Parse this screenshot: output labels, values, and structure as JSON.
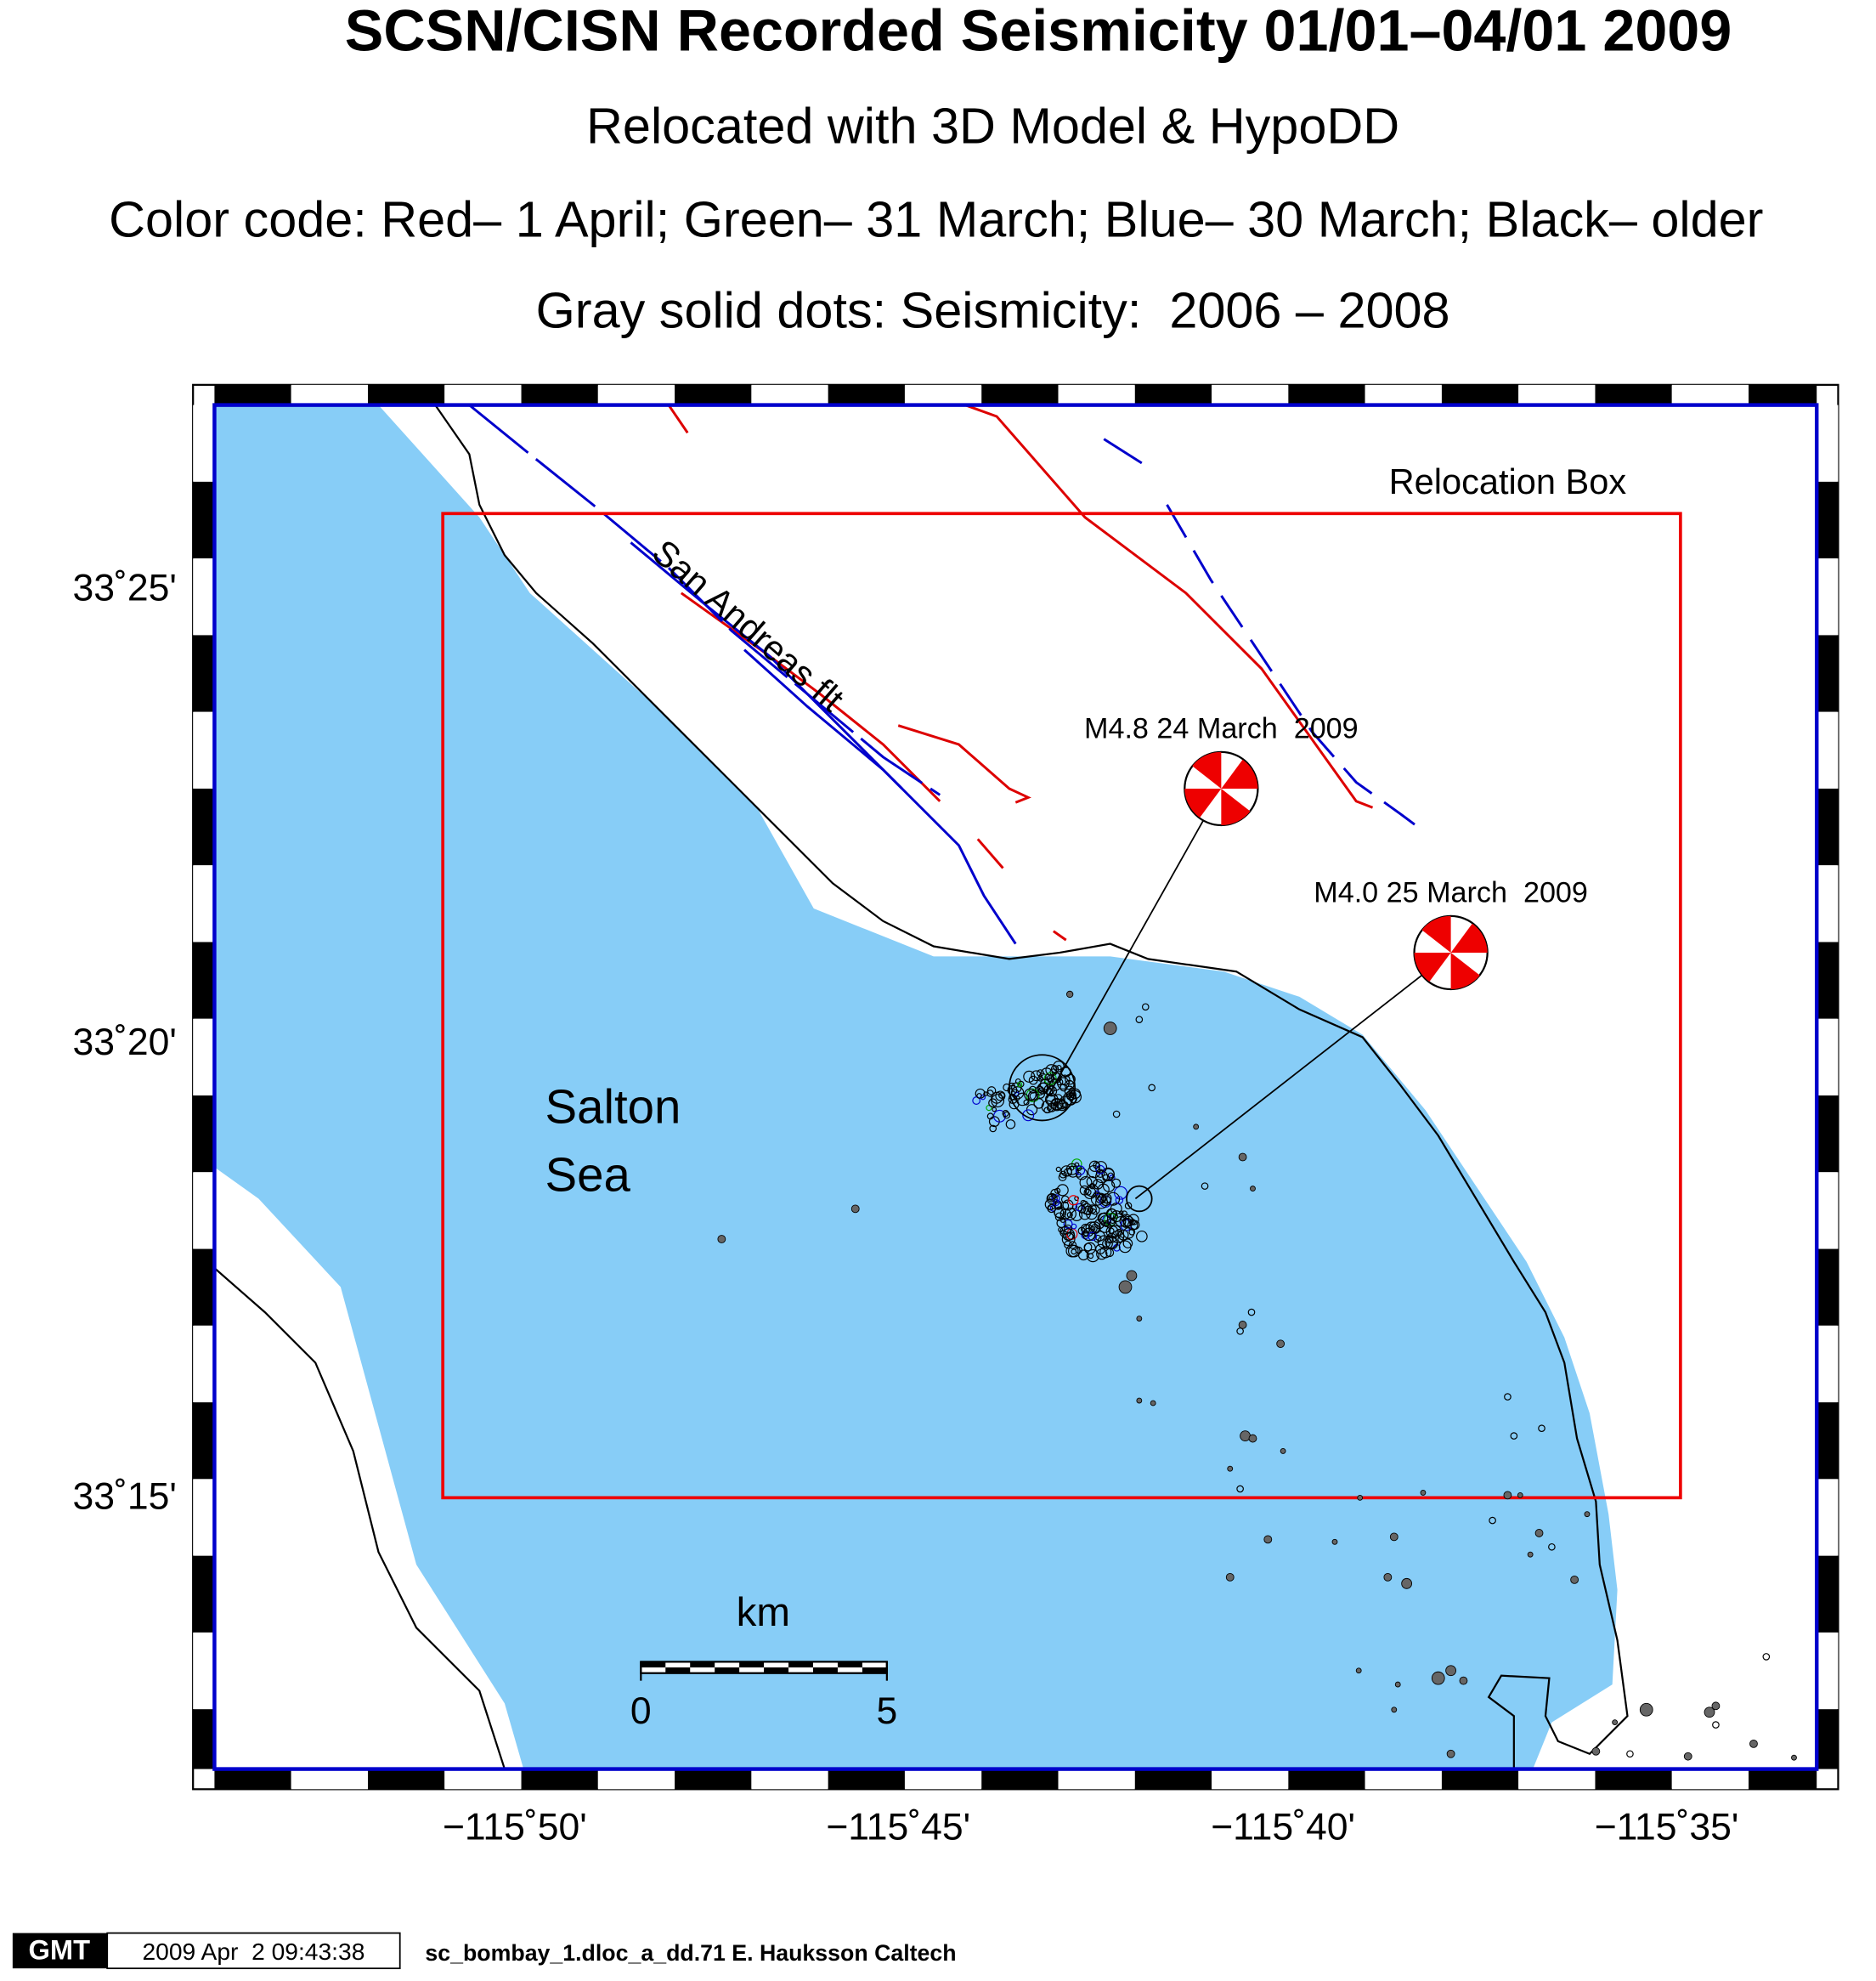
{
  "header": {
    "title": "SCSN/CISN Recorded Seismicity 01/01–04/01 2009",
    "subtitle": "Relocated with 3D Model & HypoDD",
    "color_code": "Color code: Red– 1 April; Green– 31 March; Blue– 30 March; Black– older",
    "gray_dots": "Gray solid dots: Seismicity:  2006 – 2008"
  },
  "map": {
    "lat_ticks": [
      "33˚25'",
      "33˚20'",
      "33˚15'"
    ],
    "lon_ticks": [
      "−115˚50'",
      "−115˚45'",
      "−115˚40'",
      "−115˚35'"
    ],
    "relocation_box": "Relocation Box",
    "fault_label": "San Andreas flt",
    "sea_label": [
      "Salton",
      "Sea"
    ],
    "events": [
      {
        "label": "M4.8 24 March  2009"
      },
      {
        "label": "M4.0 25 March  2009"
      }
    ],
    "scale_bar": {
      "unit": "km",
      "ticks": [
        "0",
        "5"
      ]
    }
  },
  "footer": {
    "logo": "GMT",
    "timestamp": "2009 Apr  2 09:43:38",
    "credit": "sc_bombay_1.dloc_a_dd.71 E. Hauksson Caltech"
  }
}
